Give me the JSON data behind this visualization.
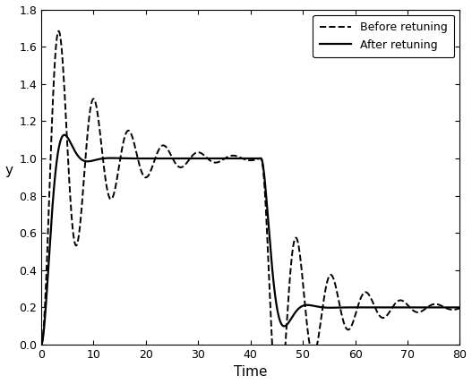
{
  "title": "",
  "xlabel": "Time",
  "ylabel": "y",
  "xlim": [
    0,
    80
  ],
  "ylim": [
    0,
    1.8
  ],
  "xticks": [
    0,
    10,
    20,
    30,
    40,
    50,
    60,
    70,
    80
  ],
  "yticks": [
    0,
    0.2,
    0.4,
    0.6,
    0.8,
    1.0,
    1.2,
    1.4,
    1.6,
    1.8
  ],
  "legend_before": "Before retuning",
  "legend_after": "After retuning",
  "figsize": [
    5.27,
    4.29
  ],
  "dpi": 100,
  "wn_before": 0.95,
  "zeta_before": 0.12,
  "wn_after": 0.85,
  "zeta_after": 0.55,
  "disturbance_time": 42,
  "disturbance_magnitude": -0.8
}
